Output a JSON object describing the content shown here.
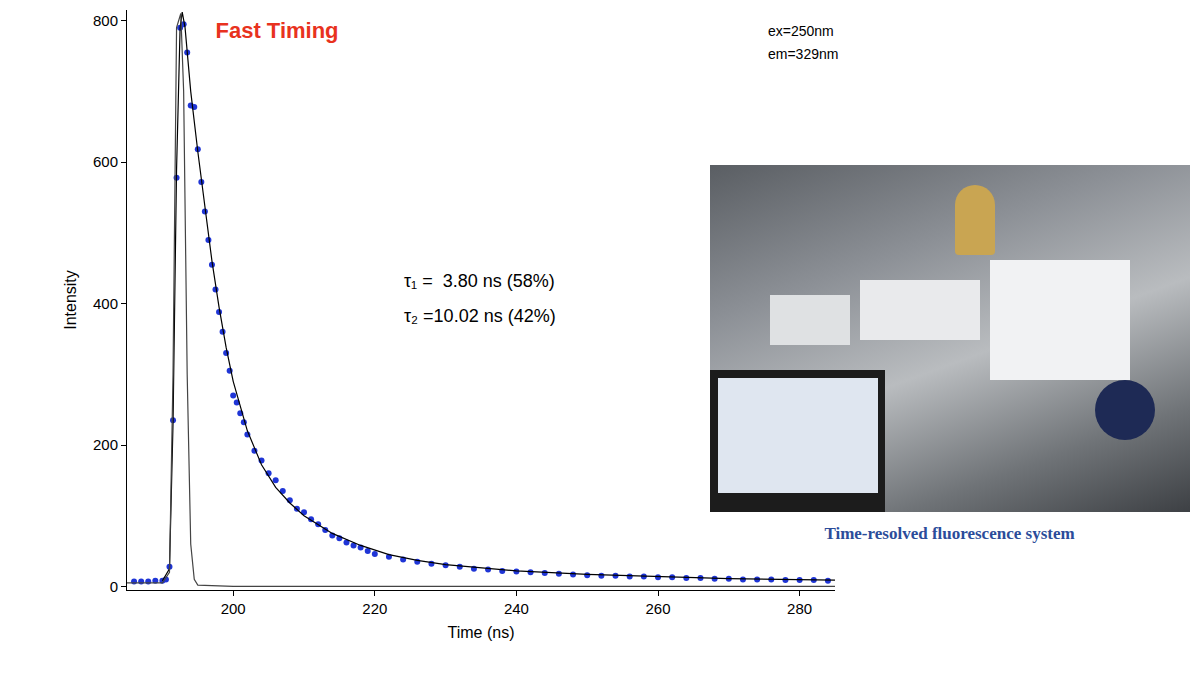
{
  "chart_data": {
    "type": "scatter",
    "title": "Fast Timing",
    "x_label": "Time (ns)",
    "y_label": "Intensity",
    "xlim": [
      185,
      285
    ],
    "ylim": [
      -5,
      815
    ],
    "xticks": [
      200,
      220,
      240,
      260,
      280
    ],
    "yticks": [
      0,
      200,
      400,
      600,
      800
    ],
    "grid": false,
    "annotations": [
      "ex=250nm",
      "em=329nm",
      "τ₁ =  3.80 ns (58%)",
      "τ₂ =10.02 ns (42%)"
    ],
    "series": [
      {
        "type": "scatter",
        "color": "#1f35d6",
        "marker": "circle",
        "x": [
          186,
          187,
          188,
          189,
          190,
          190.5,
          191,
          191.5,
          192,
          192.5,
          193,
          193.5,
          194,
          194.5,
          195,
          195.5,
          196,
          196.5,
          197,
          197.5,
          198,
          198.5,
          199,
          199.5,
          200,
          200.5,
          201,
          201.5,
          202,
          203,
          204,
          205,
          206,
          207,
          208,
          209,
          210,
          211,
          212,
          213,
          214,
          215,
          216,
          217,
          218,
          219,
          220,
          222,
          224,
          226,
          228,
          230,
          232,
          234,
          236,
          238,
          240,
          242,
          244,
          246,
          248,
          250,
          252,
          254,
          256,
          258,
          260,
          262,
          264,
          266,
          268,
          270,
          272,
          274,
          276,
          278,
          280,
          282,
          284
        ],
        "values": [
          7,
          7,
          7,
          8,
          8,
          10,
          28,
          235,
          578,
          790,
          795,
          755,
          680,
          678,
          618,
          572,
          530,
          490,
          455,
          420,
          388,
          360,
          330,
          305,
          270,
          260,
          245,
          232,
          215,
          192,
          178,
          160,
          150,
          135,
          122,
          110,
          105,
          95,
          88,
          80,
          72,
          68,
          62,
          58,
          55,
          50,
          46,
          42,
          38,
          35,
          32,
          30,
          28,
          25,
          24,
          22,
          21,
          20,
          19,
          18,
          17,
          16,
          15,
          15,
          14,
          14,
          13,
          13,
          12,
          12,
          11,
          11,
          10,
          10,
          10,
          9,
          9,
          9,
          8
        ]
      },
      {
        "type": "line",
        "color": "#000000",
        "line_style": "solid",
        "x": [
          190,
          191,
          191.5,
          192,
          192.5,
          192.8,
          193.2,
          194,
          195,
          196,
          197,
          198,
          199,
          200,
          202,
          204,
          206,
          208,
          210,
          214,
          218,
          222,
          226,
          230,
          235,
          240,
          250,
          260,
          270,
          285
        ],
        "values": [
          8,
          25,
          230,
          590,
          790,
          812,
          790,
          700,
          615,
          535,
          460,
          395,
          338,
          290,
          220,
          172,
          140,
          118,
          100,
          75,
          58,
          45,
          37,
          31,
          26,
          22,
          17,
          14,
          11,
          9
        ]
      },
      {
        "type": "line",
        "color": "#444444",
        "line_style": "solid",
        "x": [
          185,
          190,
          191,
          191.5,
          192,
          192.6,
          193,
          193.5,
          194,
          194.5,
          195,
          200,
          285
        ],
        "values": [
          5,
          5,
          20,
          300,
          790,
          810,
          700,
          300,
          60,
          10,
          2,
          0,
          0
        ]
      }
    ]
  },
  "photo": {
    "caption": "Time-resolved fluorescence system"
  }
}
